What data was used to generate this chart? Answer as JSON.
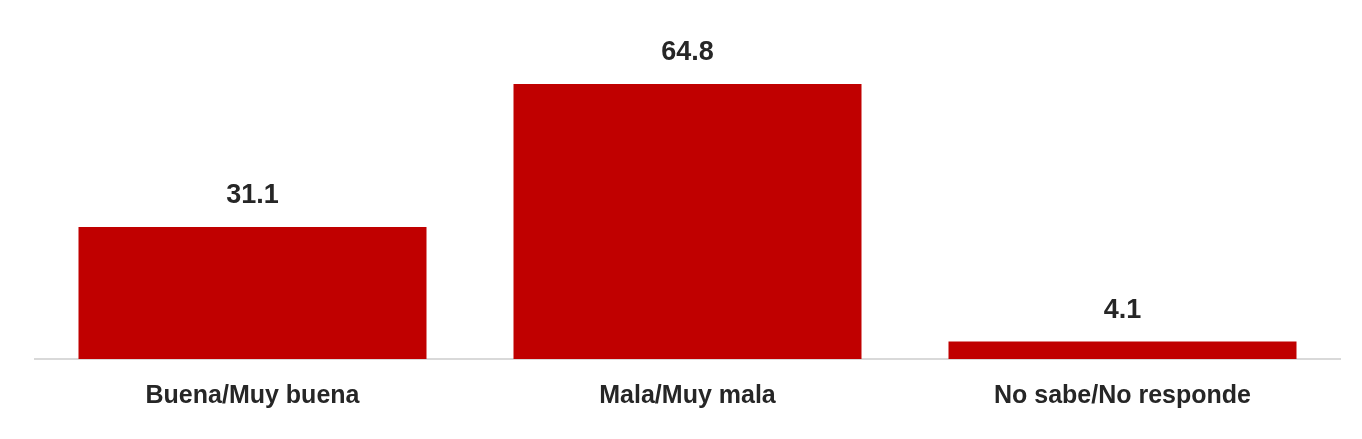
{
  "chart_data": {
    "type": "bar",
    "categories": [
      "Buena/Muy buena",
      "Mala/Muy mala",
      "No sabe/No responde"
    ],
    "values": [
      31.1,
      64.8,
      4.1
    ],
    "color": "#c00000",
    "data_labels": true,
    "grid": false,
    "legend": false,
    "tick_labels": "x"
  }
}
